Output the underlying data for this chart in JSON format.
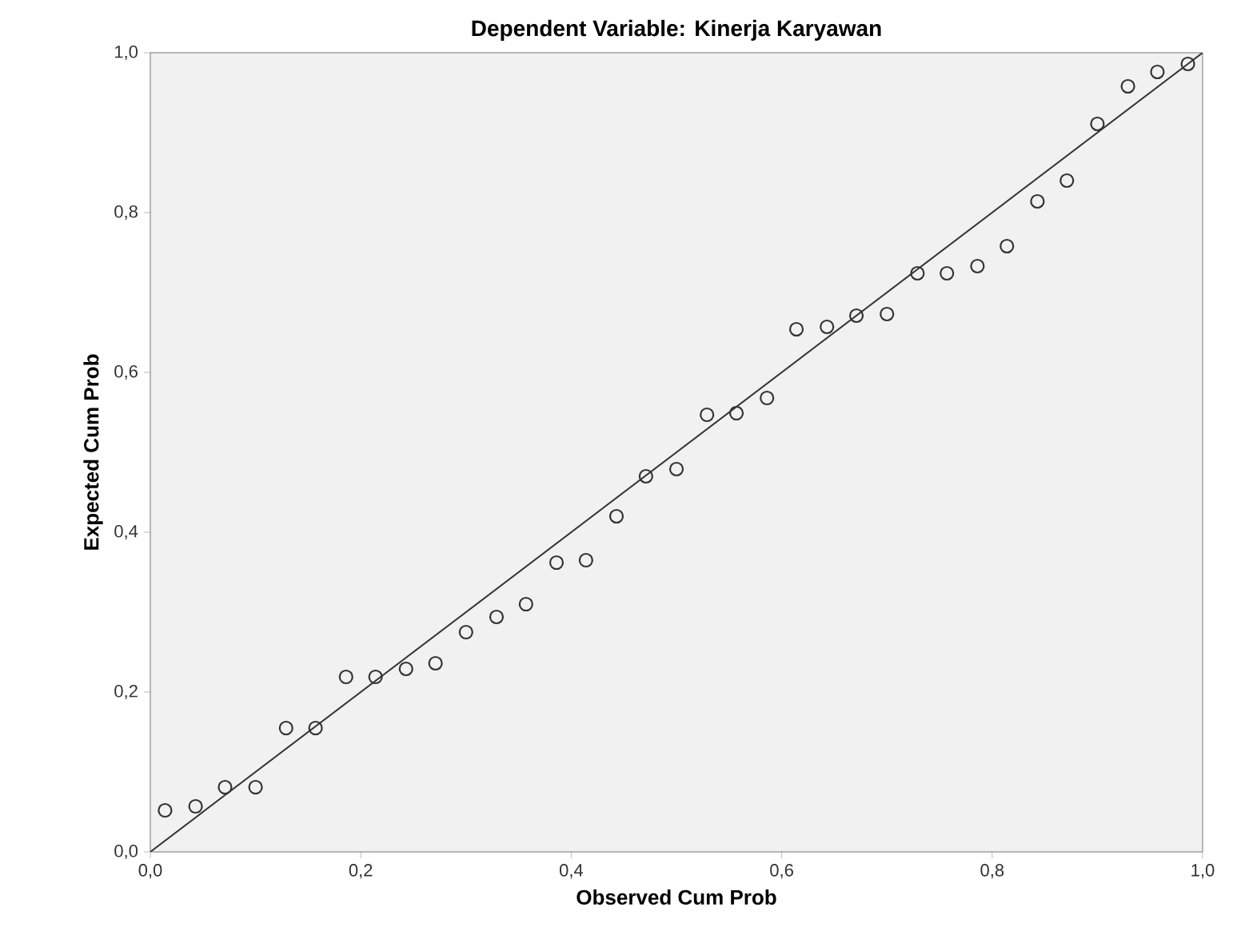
{
  "chart_data": {
    "type": "scatter",
    "title": "Dependent Variable: Kinerja Karyawan",
    "xlabel": "Observed Cum Prob",
    "ylabel": "Expected Cum Prob",
    "xlim": [
      0,
      1
    ],
    "ylim": [
      0,
      1
    ],
    "xticks": [
      {
        "value": 0,
        "label": "0,0"
      },
      {
        "value": 0.2,
        "label": "0,2"
      },
      {
        "value": 0.4,
        "label": "0,4"
      },
      {
        "value": 0.6,
        "label": "0,6"
      },
      {
        "value": 0.8,
        "label": "0,8"
      },
      {
        "value": 1,
        "label": "1,0"
      }
    ],
    "yticks": [
      {
        "value": 0,
        "label": "0,0"
      },
      {
        "value": 0.2,
        "label": "0,2"
      },
      {
        "value": 0.4,
        "label": "0,4"
      },
      {
        "value": 0.6,
        "label": "0,6"
      },
      {
        "value": 0.8,
        "label": "0,8"
      },
      {
        "value": 1,
        "label": "1,0"
      }
    ],
    "grid": false,
    "series": [
      {
        "marker": "circle",
        "color": "#333333",
        "x": [
          0.014,
          0.043,
          0.071,
          0.1,
          0.129,
          0.157,
          0.186,
          0.214,
          0.243,
          0.271,
          0.3,
          0.329,
          0.357,
          0.386,
          0.414,
          0.443,
          0.471,
          0.5,
          0.529,
          0.557,
          0.586,
          0.614,
          0.643,
          0.671,
          0.7,
          0.729,
          0.757,
          0.786,
          0.814,
          0.843,
          0.871,
          0.9,
          0.929,
          0.957,
          0.986
        ],
        "values": [
          0.052,
          0.057,
          0.081,
          0.081,
          0.155,
          0.155,
          0.219,
          0.219,
          0.229,
          0.236,
          0.275,
          0.294,
          0.31,
          0.362,
          0.365,
          0.42,
          0.47,
          0.479,
          0.547,
          0.549,
          0.568,
          0.654,
          0.657,
          0.671,
          0.673,
          0.724,
          0.724,
          0.733,
          0.758,
          0.814,
          0.84,
          0.911,
          0.958,
          0.976,
          0.986
        ]
      },
      {
        "type": "line",
        "marker": "none",
        "line_style": "solid",
        "color": "#333333",
        "x": [
          0,
          1
        ],
        "values": [
          0,
          1
        ]
      }
    ]
  }
}
